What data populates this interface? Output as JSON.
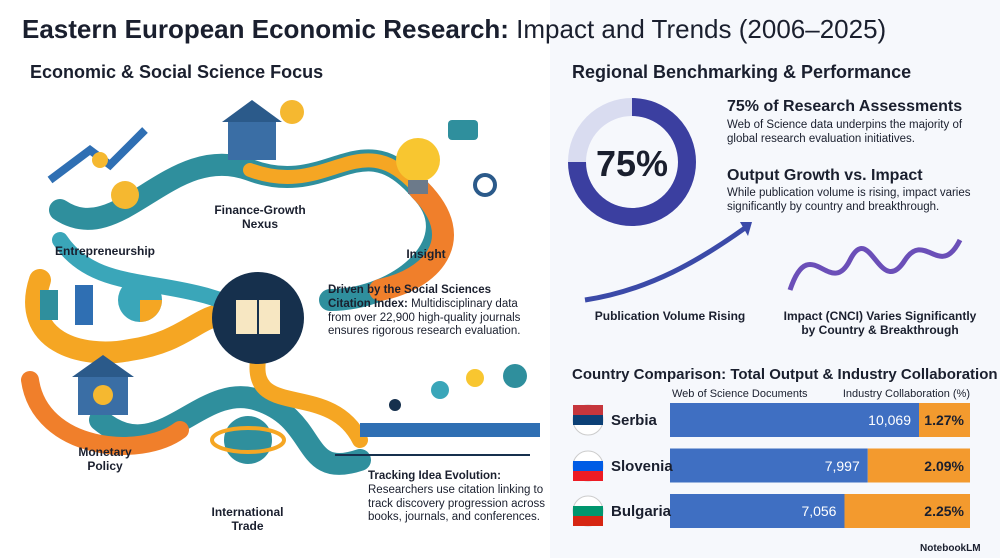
{
  "header": {
    "title_main": "Eastern European Economic Research:",
    "title_rest": " Impact and Trends (2006–2025)"
  },
  "left": {
    "heading": "Economic & Social Science Focus",
    "labels": [
      "Entrepreneurship",
      "Finance-Growth Nexus",
      "Insight",
      "Monetary Policy",
      "International Trade"
    ],
    "center_lead": "Driven by the Social Sciences Citation Index:",
    "center_text": " Multidisciplinary data from over 22,900 high-quality journals ensures rigorous research evaluation.",
    "tracking_title": "Tracking Idea Evolution:",
    "tracking_text": "Researchers use citation linking to track discovery progression across books, journals, and conferences."
  },
  "right": {
    "heading": "Regional Benchmarking & Performance",
    "donut": {
      "value": 75,
      "label": "75%"
    },
    "assess_title": "75% of Research Assessments",
    "assess_text": "Web of Science data underpins the majority of global research evaluation initiatives.",
    "growth_title": "Output Growth vs. Impact",
    "growth_text": "While publication volume is rising, impact varies significantly by country and breakthrough.",
    "volume_label": "Publication Volume Rising",
    "impact_label": "Impact (CNCI) Varies Significantly by Country & Breakthrough"
  },
  "table": {
    "title": "Country Comparison: Total Output & Industry Collaboration",
    "col1": "Web of Science Documents",
    "col2": "Industry Collaboration (%)",
    "rows": [
      {
        "country": "Serbia",
        "documents": {
          "value": 10069,
          "label": "10,069"
        },
        "collaboration": {
          "value": 1.27,
          "label": "1.27%"
        }
      },
      {
        "country": "Slovenia",
        "documents": {
          "value": 7997,
          "label": "7,997"
        },
        "collaboration": {
          "value": 2.09,
          "label": "2.09%"
        }
      },
      {
        "country": "Bulgaria",
        "documents": {
          "value": 7056,
          "label": "7,056"
        },
        "collaboration": {
          "value": 2.25,
          "label": "2.25%"
        }
      }
    ]
  },
  "footer": "NotebookLM"
}
